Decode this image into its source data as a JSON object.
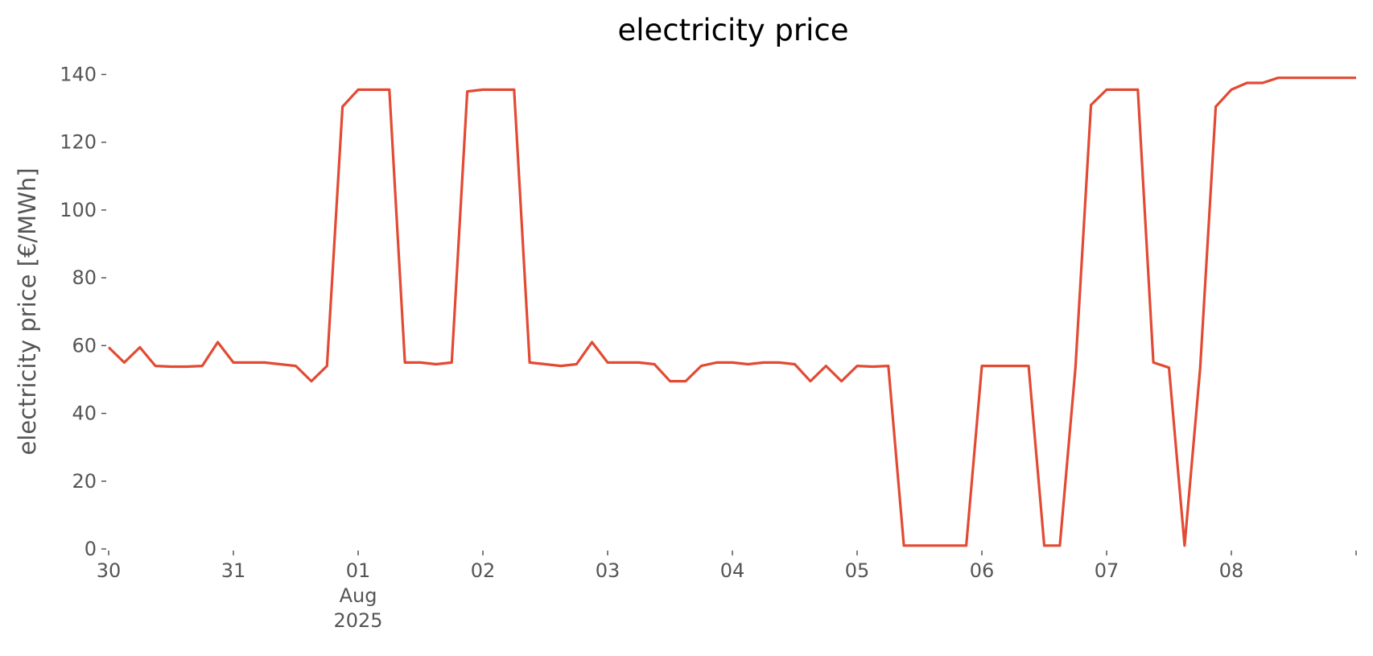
{
  "chart_data": {
    "type": "line",
    "title": "electricity price",
    "ylabel": "electricity price [€/MWh]",
    "x": [
      "2025-07-30T00:00",
      "2025-07-30T03:00",
      "2025-07-30T06:00",
      "2025-07-30T09:00",
      "2025-07-30T12:00",
      "2025-07-30T15:00",
      "2025-07-30T18:00",
      "2025-07-30T21:00",
      "2025-07-31T00:00",
      "2025-07-31T03:00",
      "2025-07-31T06:00",
      "2025-07-31T09:00",
      "2025-07-31T12:00",
      "2025-07-31T15:00",
      "2025-07-31T18:00",
      "2025-07-31T21:00",
      "2025-08-01T00:00",
      "2025-08-01T03:00",
      "2025-08-01T06:00",
      "2025-08-01T09:00",
      "2025-08-01T12:00",
      "2025-08-01T15:00",
      "2025-08-01T18:00",
      "2025-08-01T21:00",
      "2025-08-02T00:00",
      "2025-08-02T03:00",
      "2025-08-02T06:00",
      "2025-08-02T09:00",
      "2025-08-02T12:00",
      "2025-08-02T15:00",
      "2025-08-02T18:00",
      "2025-08-02T21:00",
      "2025-08-03T00:00",
      "2025-08-03T03:00",
      "2025-08-03T06:00",
      "2025-08-03T09:00",
      "2025-08-03T12:00",
      "2025-08-03T15:00",
      "2025-08-03T18:00",
      "2025-08-03T21:00",
      "2025-08-04T00:00",
      "2025-08-04T03:00",
      "2025-08-04T06:00",
      "2025-08-04T09:00",
      "2025-08-04T12:00",
      "2025-08-04T15:00",
      "2025-08-04T18:00",
      "2025-08-04T21:00",
      "2025-08-05T00:00",
      "2025-08-05T03:00",
      "2025-08-05T06:00",
      "2025-08-05T09:00",
      "2025-08-05T12:00",
      "2025-08-05T15:00",
      "2025-08-05T18:00",
      "2025-08-05T21:00",
      "2025-08-06T00:00",
      "2025-08-06T03:00",
      "2025-08-06T06:00",
      "2025-08-06T09:00",
      "2025-08-06T12:00",
      "2025-08-06T15:00",
      "2025-08-06T18:00",
      "2025-08-06T21:00",
      "2025-08-07T00:00",
      "2025-08-07T03:00",
      "2025-08-07T06:00",
      "2025-08-07T09:00",
      "2025-08-07T12:00",
      "2025-08-07T15:00",
      "2025-08-07T18:00",
      "2025-08-07T21:00",
      "2025-08-08T00:00",
      "2025-08-08T03:00",
      "2025-08-08T06:00",
      "2025-08-08T09:00",
      "2025-08-08T12:00",
      "2025-08-08T15:00",
      "2025-08-08T18:00",
      "2025-08-08T21:00",
      "2025-08-09T00:00"
    ],
    "series": [
      {
        "name": "electricity price",
        "color": "#e24a33",
        "values": [
          59.5,
          55,
          59.5,
          54,
          53.8,
          53.8,
          54,
          61,
          55,
          55,
          55,
          54.5,
          54,
          49.5,
          54,
          130.5,
          135.5,
          135.5,
          135.5,
          55,
          55,
          54.5,
          55,
          135,
          135.5,
          135.5,
          135.5,
          55,
          54.5,
          54,
          54.5,
          61,
          55,
          55,
          55,
          54.5,
          49.5,
          49.5,
          54,
          55,
          55,
          54.5,
          55,
          55,
          54.5,
          49.5,
          54,
          49.5,
          54,
          53.8,
          54,
          1,
          1,
          1,
          1,
          1,
          54,
          54,
          54,
          54,
          1,
          1,
          53.5,
          131,
          135.5,
          135.5,
          135.5,
          55,
          53.5,
          1,
          53.5,
          130.5,
          135.5,
          137.5,
          137.5,
          139,
          139,
          139,
          139,
          139,
          139
        ]
      }
    ],
    "xlim": [
      "2025-07-30T00:00",
      "2025-08-09T00:00"
    ],
    "xticks": [
      {
        "value": "2025-07-30T00:00",
        "label": "30"
      },
      {
        "value": "2025-07-31T00:00",
        "label": "31"
      },
      {
        "value": "2025-08-01T00:00",
        "label": "01\nAug\n2025"
      },
      {
        "value": "2025-08-02T00:00",
        "label": "02"
      },
      {
        "value": "2025-08-03T00:00",
        "label": "03"
      },
      {
        "value": "2025-08-04T00:00",
        "label": "04"
      },
      {
        "value": "2025-08-05T00:00",
        "label": "05"
      },
      {
        "value": "2025-08-06T00:00",
        "label": "06"
      },
      {
        "value": "2025-08-07T00:00",
        "label": "07"
      },
      {
        "value": "2025-08-08T00:00",
        "label": "08"
      },
      {
        "value": "2025-08-09T00:00",
        "label": null
      }
    ],
    "ylim": [
      0,
      140
    ],
    "yticks": [
      0,
      20,
      40,
      60,
      80,
      100,
      120,
      140
    ],
    "grid": false
  }
}
